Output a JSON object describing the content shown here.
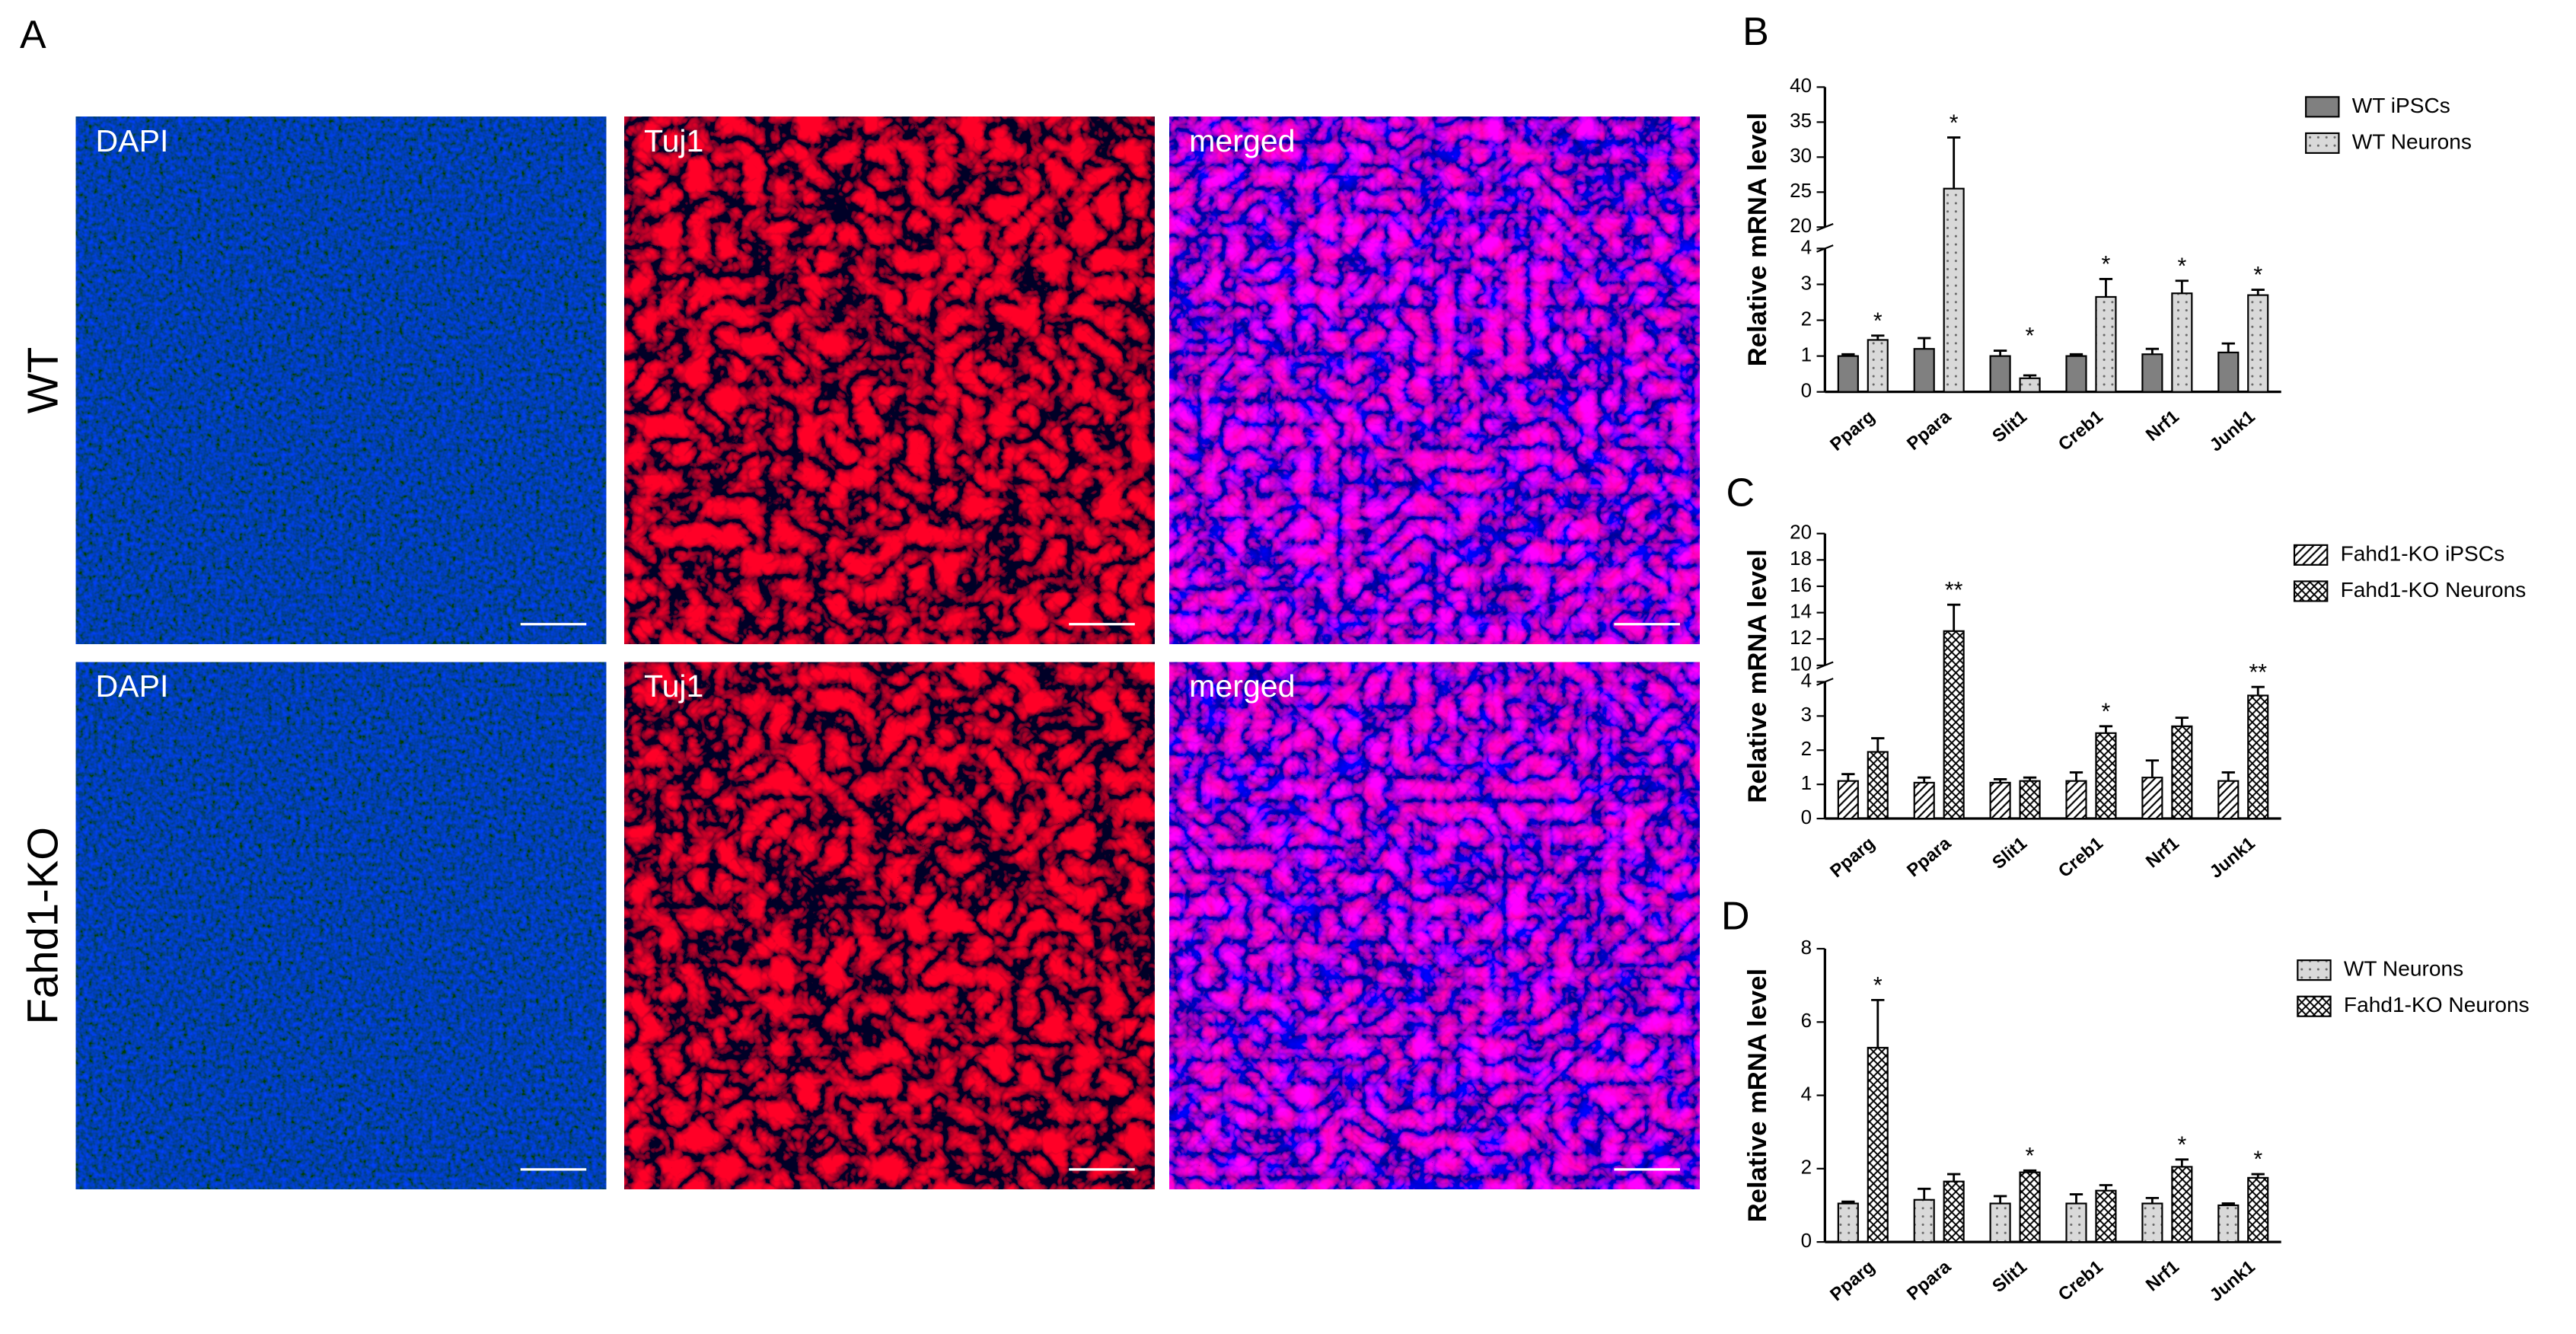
{
  "figure": {
    "panel": "A",
    "rows": [
      {
        "label": "WT",
        "images": [
          "DAPI",
          "Tuj1",
          "merged"
        ]
      },
      {
        "label": "Fahd1-KO",
        "images": [
          "DAPI",
          "Tuj1",
          "merged"
        ]
      }
    ]
  },
  "chart_data": [
    {
      "type": "bar",
      "panel": "B",
      "y_label": "Relative mRNA level",
      "categories": [
        "Pparg",
        "Ppara",
        "Slit1",
        "Creb1",
        "Nrf1",
        "Junk1"
      ],
      "series": [
        {
          "name": "WT iPSCs",
          "color": "#808080",
          "pattern": "solid",
          "values": [
            1.0,
            1.2,
            1.0,
            1.0,
            1.05,
            1.1
          ],
          "errors": [
            0.05,
            0.3,
            0.15,
            0.05,
            0.15,
            0.25
          ]
        },
        {
          "name": "WT Neurons",
          "color": "#d9d9d9",
          "pattern": "dots",
          "values": [
            1.45,
            25.5,
            0.38,
            2.65,
            2.75,
            2.7
          ],
          "errors": [
            0.12,
            7.3,
            0.08,
            0.5,
            0.35,
            0.15
          ]
        }
      ],
      "ylim": [
        0,
        40
      ],
      "axis_break": [
        4,
        20
      ],
      "yticks": [
        0,
        1,
        2,
        3,
        4,
        20,
        25,
        30,
        35,
        40
      ],
      "annotations": [
        {
          "category": "Pparg",
          "text": "*"
        },
        {
          "category": "Ppara",
          "text": "*"
        },
        {
          "category": "Slit1",
          "text": "*"
        },
        {
          "category": "Creb1",
          "text": "*"
        },
        {
          "category": "Nrf1",
          "text": "*"
        },
        {
          "category": "Junk1",
          "text": "*"
        }
      ],
      "legend": "right"
    },
    {
      "type": "bar",
      "panel": "C",
      "y_label": "Relative mRNA level",
      "categories": [
        "Pparg",
        "Ppara",
        "Slit1",
        "Creb1",
        "Nrf1",
        "Junk1"
      ],
      "series": [
        {
          "name": "Fahd1-KO iPSCs",
          "color": "#ffffff",
          "pattern": "diagonal",
          "values": [
            1.1,
            1.05,
            1.05,
            1.1,
            1.2,
            1.1
          ],
          "errors": [
            0.2,
            0.15,
            0.1,
            0.25,
            0.5,
            0.25
          ]
        },
        {
          "name": "Fahd1-KO Neurons",
          "color": "#ffffff",
          "pattern": "cross",
          "values": [
            1.95,
            12.6,
            1.1,
            2.5,
            2.7,
            3.6
          ],
          "errors": [
            0.4,
            2.0,
            0.1,
            0.2,
            0.25,
            0.25
          ]
        }
      ],
      "ylim": [
        0,
        20
      ],
      "axis_break": [
        4,
        10
      ],
      "yticks": [
        0,
        1,
        2,
        3,
        4,
        10,
        12,
        14,
        16,
        18,
        20
      ],
      "annotations": [
        {
          "category": "Ppara",
          "text": "**"
        },
        {
          "category": "Creb1",
          "text": "*"
        },
        {
          "category": "Junk1",
          "text": "**"
        }
      ],
      "legend": "right"
    },
    {
      "type": "bar",
      "panel": "D",
      "y_label": "Relative mRNA level",
      "categories": [
        "Pparg",
        "Ppara",
        "Slit1",
        "Creb1",
        "Nrf1",
        "Junk1"
      ],
      "series": [
        {
          "name": "WT Neurons",
          "color": "#d9d9d9",
          "pattern": "dots",
          "values": [
            1.05,
            1.15,
            1.05,
            1.05,
            1.05,
            1.0
          ],
          "errors": [
            0.05,
            0.3,
            0.2,
            0.25,
            0.15,
            0.05
          ]
        },
        {
          "name": "Fahd1-KO Neurons",
          "color": "#ffffff",
          "pattern": "cross",
          "values": [
            5.3,
            1.65,
            1.9,
            1.4,
            2.05,
            1.75
          ],
          "errors": [
            1.3,
            0.2,
            0.05,
            0.15,
            0.2,
            0.1
          ]
        }
      ],
      "ylim": [
        0,
        8
      ],
      "yticks": [
        0,
        2,
        4,
        6,
        8
      ],
      "annotations": [
        {
          "category": "Pparg",
          "text": "*"
        },
        {
          "category": "Slit1",
          "text": "*"
        },
        {
          "category": "Nrf1",
          "text": "*"
        },
        {
          "category": "Junk1",
          "text": "*"
        }
      ],
      "legend": "right"
    }
  ]
}
